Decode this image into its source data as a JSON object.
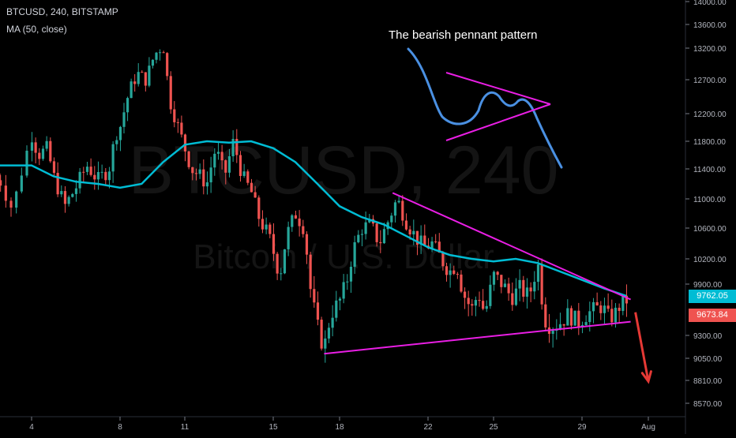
{
  "header": {
    "symbol_line": "BTCUSD, 240, BITSTAMP",
    "indicator_line": "MA (50, close)"
  },
  "watermark": {
    "symbol": "BTCUSD, 240",
    "description": "Bitcoin / U.S. Dollar"
  },
  "annotation": {
    "text": "The bearish pennant pattern"
  },
  "price_tags": {
    "ma_value": "9762.05",
    "price_value": "9673.84",
    "ma_color": "#00bcd4",
    "price_color": "#ef5350"
  },
  "colors": {
    "background": "#000000",
    "up_candle": "#26a69a",
    "down_candle": "#ef5350",
    "ma_line": "#00bcd4",
    "trendline": "#e91ee4",
    "sketch_line": "#4a90e2",
    "arrow": "#e53935"
  },
  "chart_data": {
    "type": "candlestick",
    "title": "BTCUSD, 240, BITSTAMP",
    "y_axis": {
      "ticks": [
        14000,
        13600,
        13200,
        12700,
        12200,
        11800,
        11400,
        11000,
        10600,
        10200,
        9900,
        9300,
        9050,
        8810,
        8570
      ],
      "tick_labels": [
        "14000.00",
        "13600.00",
        "13200.00",
        "12700.00",
        "12200.00",
        "11800.00",
        "11400.00",
        "11000.00",
        "10600.00",
        "10200.00",
        "9900.00",
        "9300.00",
        "9050.00",
        "8810.00",
        "8570.00"
      ],
      "scale": "log"
    },
    "x_axis": {
      "tick_labels": [
        "4",
        "8",
        "11",
        "15",
        "18",
        "22",
        "25",
        "29",
        "Aug"
      ]
    },
    "x_range_days": [
      3,
      32
    ],
    "series": [
      {
        "name": "BTCUSD",
        "anchor_closes": [
          [
            3.0,
            11250
          ],
          [
            3.4,
            10850
          ],
          [
            3.7,
            11400
          ],
          [
            4.0,
            11900
          ],
          [
            4.3,
            11600
          ],
          [
            4.7,
            11700
          ],
          [
            5.0,
            11300
          ],
          [
            5.5,
            10900
          ],
          [
            6.0,
            11150
          ],
          [
            6.5,
            11450
          ],
          [
            7.0,
            11250
          ],
          [
            7.5,
            11400
          ],
          [
            7.8,
            11900
          ],
          [
            8.0,
            12000
          ],
          [
            8.4,
            12500
          ],
          [
            8.8,
            12800
          ],
          [
            9.2,
            12700
          ],
          [
            9.6,
            13100
          ],
          [
            10.0,
            13250
          ],
          [
            10.3,
            12400
          ],
          [
            10.6,
            12100
          ],
          [
            11.0,
            11700
          ],
          [
            11.3,
            11400
          ],
          [
            11.7,
            11300
          ],
          [
            12.0,
            11200
          ],
          [
            12.4,
            11700
          ],
          [
            12.8,
            11300
          ],
          [
            13.2,
            11800
          ],
          [
            13.6,
            11300
          ],
          [
            14.0,
            11100
          ],
          [
            14.4,
            10700
          ],
          [
            14.8,
            10500
          ],
          [
            15.0,
            10300
          ],
          [
            15.3,
            10000
          ],
          [
            15.6,
            10500
          ],
          [
            16.0,
            10800
          ],
          [
            16.4,
            10600
          ],
          [
            16.7,
            9800
          ],
          [
            17.0,
            9400
          ],
          [
            17.3,
            9150
          ],
          [
            17.6,
            9550
          ],
          [
            18.0,
            9700
          ],
          [
            18.3,
            9900
          ],
          [
            18.6,
            10300
          ],
          [
            19.0,
            10600
          ],
          [
            19.4,
            10650
          ],
          [
            19.8,
            10400
          ],
          [
            20.2,
            10700
          ],
          [
            20.6,
            11000
          ],
          [
            21.0,
            10700
          ],
          [
            21.4,
            10500
          ],
          [
            21.8,
            10350
          ],
          [
            22.2,
            10400
          ],
          [
            22.6,
            10200
          ],
          [
            23.0,
            10050
          ],
          [
            23.3,
            10150
          ],
          [
            23.6,
            9800
          ],
          [
            24.0,
            9600
          ],
          [
            24.3,
            9800
          ],
          [
            24.6,
            9550
          ],
          [
            25.0,
            10000
          ],
          [
            25.4,
            9900
          ],
          [
            25.8,
            9750
          ],
          [
            26.2,
            9850
          ],
          [
            26.6,
            9750
          ],
          [
            27.0,
            10150
          ],
          [
            27.3,
            9500
          ],
          [
            27.6,
            9400
          ],
          [
            28.0,
            9450
          ],
          [
            28.4,
            9550
          ],
          [
            28.8,
            9450
          ],
          [
            29.2,
            9550
          ],
          [
            29.6,
            9600
          ],
          [
            29.9,
            9650
          ],
          [
            30.2,
            9500
          ],
          [
            30.5,
            9550
          ],
          [
            30.7,
            9650
          ],
          [
            31.0,
            9680
          ]
        ]
      },
      {
        "name": "MA (50, close)",
        "points": [
          [
            3.0,
            11450
          ],
          [
            4.0,
            11450
          ],
          [
            5.0,
            11300
          ],
          [
            6.0,
            11230
          ],
          [
            7.0,
            11200
          ],
          [
            8.0,
            11150
          ],
          [
            9.0,
            11200
          ],
          [
            10.0,
            11500
          ],
          [
            11.0,
            11750
          ],
          [
            12.0,
            11800
          ],
          [
            13.0,
            11780
          ],
          [
            14.0,
            11800
          ],
          [
            15.0,
            11700
          ],
          [
            16.0,
            11500
          ],
          [
            17.0,
            11200
          ],
          [
            18.0,
            10900
          ],
          [
            19.0,
            10750
          ],
          [
            20.0,
            10650
          ],
          [
            21.0,
            10500
          ],
          [
            22.0,
            10350
          ],
          [
            23.0,
            10250
          ],
          [
            24.0,
            10200
          ],
          [
            25.0,
            10170
          ],
          [
            26.0,
            10200
          ],
          [
            27.0,
            10150
          ],
          [
            28.0,
            10050
          ],
          [
            29.0,
            9950
          ],
          [
            30.0,
            9850
          ],
          [
            31.0,
            9762
          ]
        ]
      }
    ],
    "trendlines": {
      "upper": [
        [
          20.4,
          11080
        ],
        [
          31.2,
          9720
        ]
      ],
      "lower": [
        [
          17.3,
          9100
        ],
        [
          31.2,
          9460
        ]
      ]
    },
    "forecast_arrow": [
      [
        31.2,
        9700
      ],
      [
        32.0,
        8800
      ]
    ],
    "current_values": {
      "price": 9673.84,
      "ma": 9762.05
    }
  }
}
